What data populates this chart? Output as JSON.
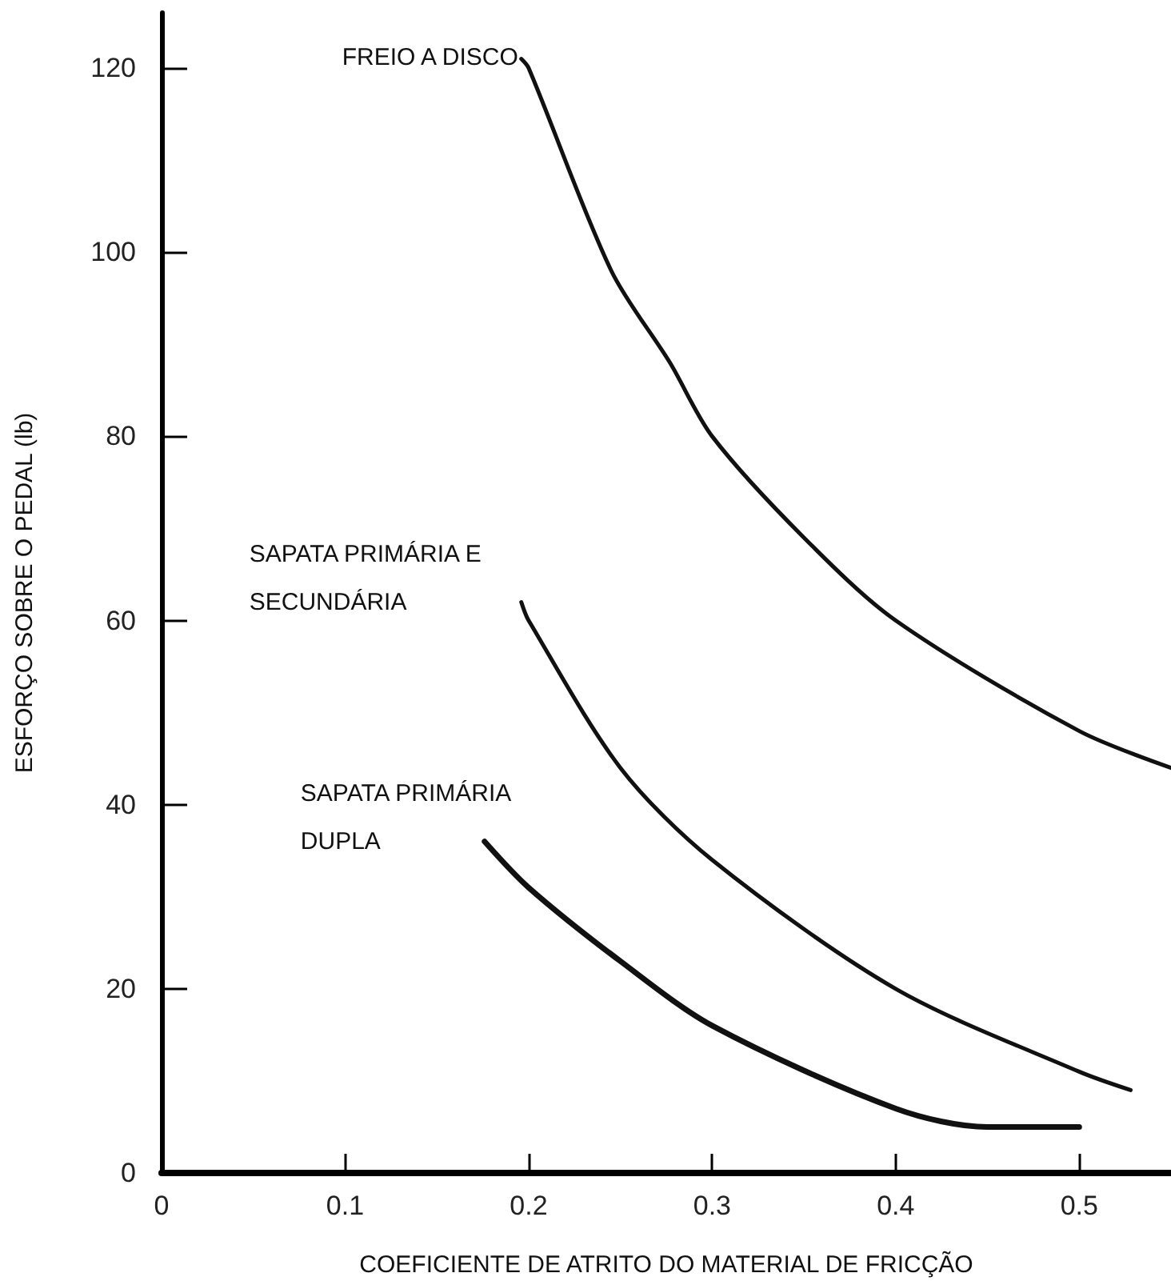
{
  "chart_data": {
    "type": "line",
    "xlabel": "COEFICIENTE DE ATRITO DO MATERIAL DE FRICÇÃO",
    "ylabel": "ESFORÇO SOBRE O PEDAL (lb)",
    "xlim": [
      0,
      0.55
    ],
    "xticks": [
      0,
      0.1,
      0.2,
      0.3,
      0.4,
      0.5
    ],
    "ylim": [
      0,
      126
    ],
    "yticks": [
      0,
      20,
      40,
      60,
      80,
      100,
      120
    ],
    "grid": false,
    "legend": false,
    "marker": "none",
    "line_style": "solid",
    "series": [
      {
        "name": "FREIO A DISCO",
        "color": "#111111",
        "x": [
          0.196,
          0.2,
          0.245,
          0.277,
          0.3,
          0.35,
          0.4,
          0.5,
          0.55
        ],
        "values": [
          121,
          120,
          98,
          88,
          80,
          69,
          60,
          48,
          44
        ]
      },
      {
        "name": "SAPATA PRIMÁRIA E\nSECUNDÁRIA",
        "color": "#111111",
        "x": [
          0.196,
          0.2,
          0.25,
          0.3,
          0.4,
          0.5,
          0.528
        ],
        "values": [
          62,
          60,
          44,
          34,
          20,
          11,
          9
        ]
      },
      {
        "name": "SAPATA PRIMÁRIA\nDUPLA",
        "color": "#111111",
        "x": [
          0.176,
          0.2,
          0.25,
          0.3,
          0.4,
          0.45,
          0.5
        ],
        "values": [
          36,
          31,
          23,
          16,
          7,
          5,
          5
        ]
      }
    ]
  }
}
